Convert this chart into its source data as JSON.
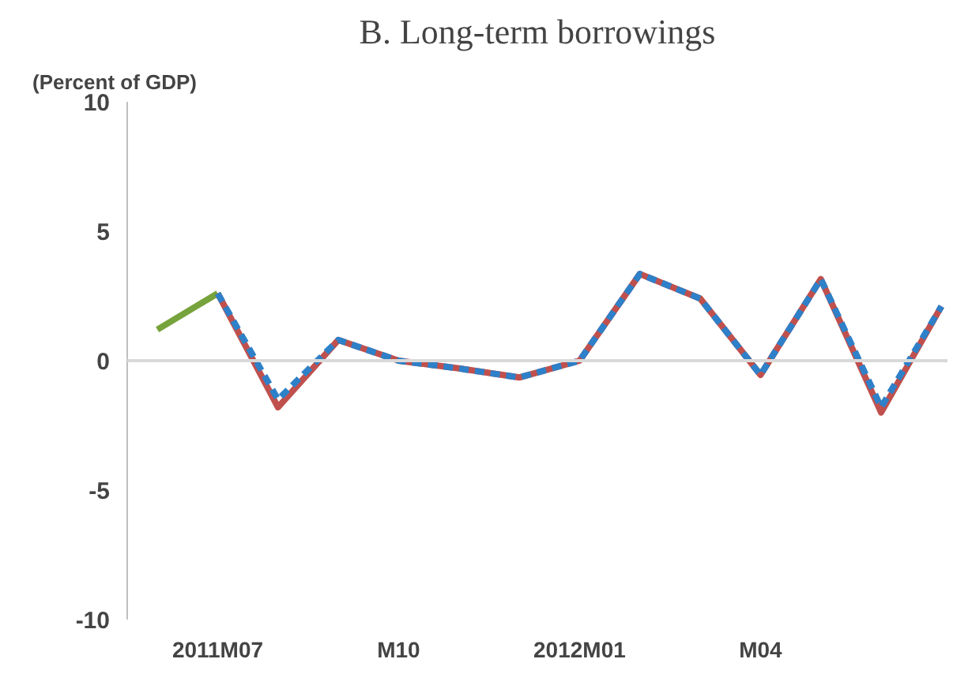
{
  "chart_data": {
    "type": "line",
    "title": "B. Long-term borrowings",
    "ylabel": "(Percent of GDP)",
    "categories": [
      null,
      "2011M07",
      null,
      null,
      "M10",
      null,
      null,
      "2012M01",
      null,
      null,
      "M04",
      null,
      null,
      null
    ],
    "series": [
      {
        "color": "#77a33c",
        "line_style": "solid",
        "values": [
          1.2,
          2.6,
          null,
          null,
          null,
          null,
          null,
          null,
          null,
          null,
          null,
          null,
          null,
          null
        ]
      },
      {
        "color": "#c0504d",
        "line_style": "solid",
        "values": [
          null,
          2.6,
          -1.8,
          0.8,
          0,
          -0.3,
          -0.65,
          0,
          3.35,
          2.4,
          -0.55,
          3.15,
          -2.0,
          2.1
        ]
      },
      {
        "color": "#2e80c8",
        "line_style": "dashed",
        "values": [
          null,
          2.6,
          -1.5,
          0.8,
          0,
          -0.3,
          -0.65,
          0,
          3.35,
          2.4,
          -0.55,
          3.15,
          -1.8,
          2.1
        ]
      }
    ],
    "ylim": [
      -10,
      10
    ],
    "yticks": [
      -10,
      -5,
      0,
      5,
      10
    ],
    "grid": false,
    "marker": "none",
    "ref_lines": [
      {
        "axis": "y",
        "value": 0,
        "color": "#d9d9d9"
      }
    ]
  }
}
